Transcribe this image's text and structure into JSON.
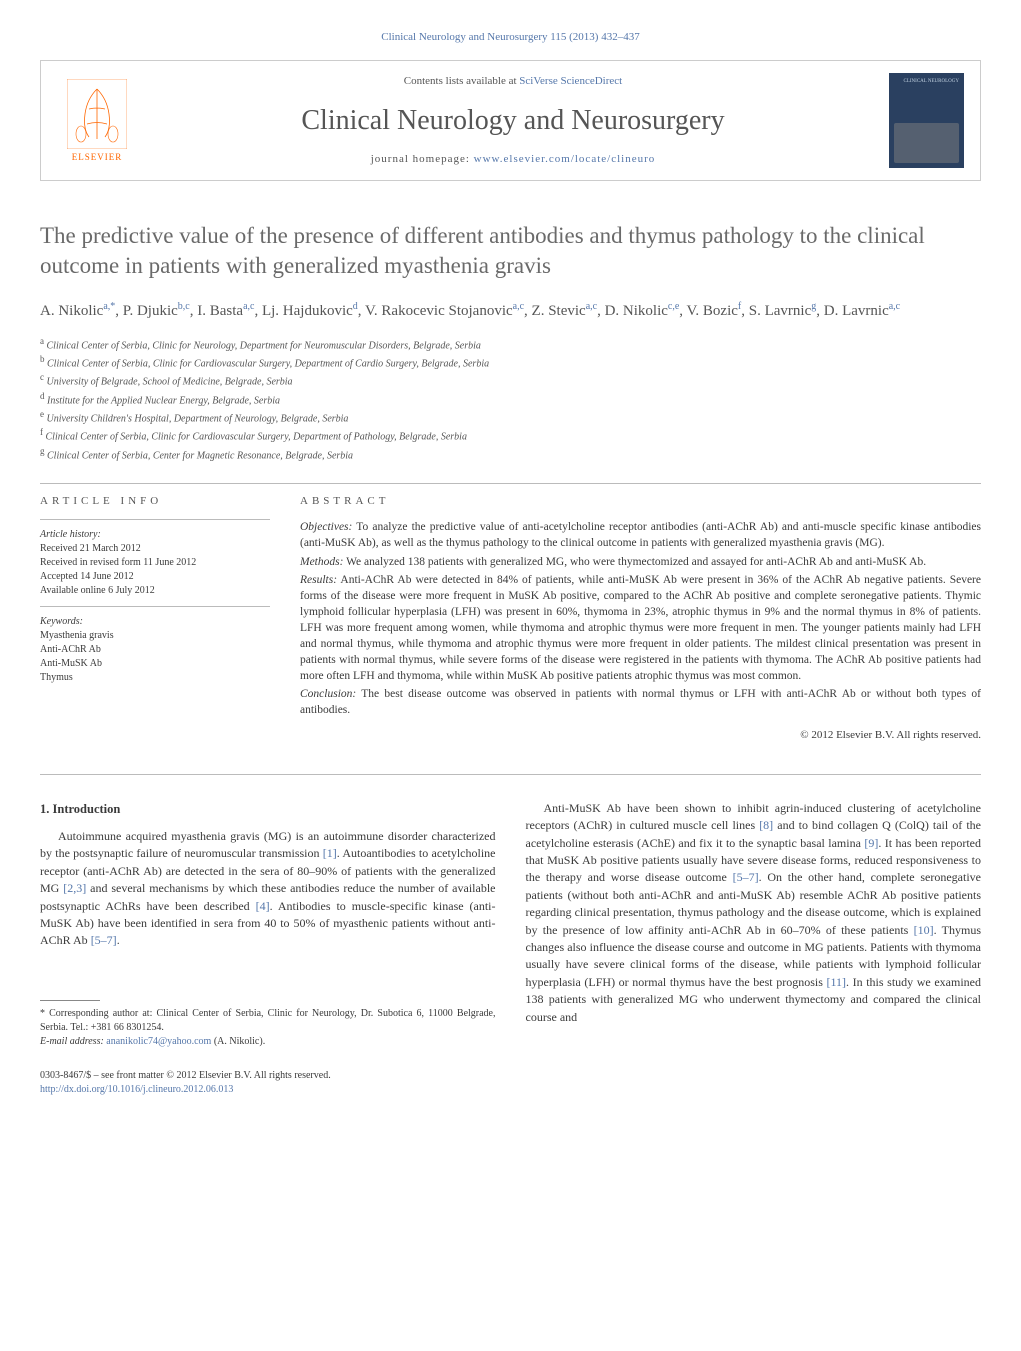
{
  "meta_header": "Clinical Neurology and Neurosurgery 115 (2013) 432–437",
  "publisher": {
    "contents_prefix": "Contents lists available at ",
    "contents_link": "SciVerse ScienceDirect",
    "journal_name": "Clinical Neurology and Neurosurgery",
    "homepage_prefix": "journal homepage: ",
    "homepage_link": "www.elsevier.com/locate/clineuro",
    "elsevier_name": "ELSEVIER",
    "cover_title": "CLINICAL NEUROLOGY"
  },
  "article": {
    "title": "The predictive value of the presence of different antibodies and thymus pathology to the clinical outcome in patients with generalized myasthenia gravis",
    "authors_html": "A. Nikolic<sup>a,*</sup>, P. Djukic<sup>b,c</sup>, I. Basta<sup>a,c</sup>, Lj. Hajdukovic<sup>d</sup>, V. Rakocevic Stojanovic<sup>a,c</sup>, Z. Stevic<sup>a,c</sup>, D. Nikolic<sup>c,e</sup>, V. Bozic<sup>f</sup>, S. Lavrnic<sup>g</sup>, D. Lavrnic<sup>a,c</sup>",
    "affiliations": [
      {
        "sup": "a",
        "text": "Clinical Center of Serbia, Clinic for Neurology, Department for Neuromuscular Disorders, Belgrade, Serbia"
      },
      {
        "sup": "b",
        "text": "Clinical Center of Serbia, Clinic for Cardiovascular Surgery, Department of Cardio Surgery, Belgrade, Serbia"
      },
      {
        "sup": "c",
        "text": "University of Belgrade, School of Medicine, Belgrade, Serbia"
      },
      {
        "sup": "d",
        "text": "Institute for the Applied Nuclear Energy, Belgrade, Serbia"
      },
      {
        "sup": "e",
        "text": "University Children's Hospital, Department of Neurology, Belgrade, Serbia"
      },
      {
        "sup": "f",
        "text": "Clinical Center of Serbia, Clinic for Cardiovascular Surgery, Department of Pathology, Belgrade, Serbia"
      },
      {
        "sup": "g",
        "text": "Clinical Center of Serbia, Center for Magnetic Resonance, Belgrade, Serbia"
      }
    ]
  },
  "info": {
    "heading": "article info",
    "history_label": "Article history:",
    "history": [
      "Received 21 March 2012",
      "Received in revised form 11 June 2012",
      "Accepted 14 June 2012",
      "Available online 6 July 2012"
    ],
    "keywords_label": "Keywords:",
    "keywords": [
      "Myasthenia gravis",
      "Anti-AChR Ab",
      "Anti-MuSK Ab",
      "Thymus"
    ]
  },
  "abstract": {
    "heading": "abstract",
    "sections": [
      {
        "label": "Objectives:",
        "text": " To analyze the predictive value of anti-acetylcholine receptor antibodies (anti-AChR Ab) and anti-muscle specific kinase antibodies (anti-MuSK Ab), as well as the thymus pathology to the clinical outcome in patients with generalized myasthenia gravis (MG)."
      },
      {
        "label": "Methods:",
        "text": " We analyzed 138 patients with generalized MG, who were thymectomized and assayed for anti-AChR Ab and anti-MuSK Ab."
      },
      {
        "label": "Results:",
        "text": " Anti-AChR Ab were detected in 84% of patients, while anti-MuSK Ab were present in 36% of the AChR Ab negative patients. Severe forms of the disease were more frequent in MuSK Ab positive, compared to the AChR Ab positive and complete seronegative patients. Thymic lymphoid follicular hyperplasia (LFH) was present in 60%, thymoma in 23%, atrophic thymus in 9% and the normal thymus in 8% of patients. LFH was more frequent among women, while thymoma and atrophic thymus were more frequent in men. The younger patients mainly had LFH and normal thymus, while thymoma and atrophic thymus were more frequent in older patients. The mildest clinical presentation was present in patients with normal thymus, while severe forms of the disease were registered in the patients with thymoma. The AChR Ab positive patients had more often LFH and thymoma, while within MuSK Ab positive patients atrophic thymus was most common."
      },
      {
        "label": "Conclusion:",
        "text": " The best disease outcome was observed in patients with normal thymus or LFH with anti-AChR Ab or without both types of antibodies."
      }
    ],
    "copyright": "© 2012 Elsevier B.V. All rights reserved."
  },
  "body": {
    "heading": "1. Introduction",
    "col1_p1_pre": "Autoimmune acquired myasthenia gravis (MG) is an autoimmune disorder characterized by the postsynaptic failure of neuromuscular transmission ",
    "ref1": "[1]",
    "col1_p1_mid1": ". Autoantibodies to acetylcholine receptor (anti-AChR Ab) are detected in the sera of 80–90% of patients with the generalized MG ",
    "ref23": "[2,3]",
    "col1_p1_mid2": " and several mechanisms by which these antibodies reduce the number of available postsynaptic AChRs have been described ",
    "ref4": "[4]",
    "col1_p1_mid3": ". Antibodies to muscle-specific kinase (anti-MuSK Ab) have been identified in sera from 40 to 50% of myasthenic patients without anti-AChR Ab ",
    "ref57a": "[5–7]",
    "col1_p1_end": ".",
    "col2_p1_pre": "Anti-MuSK Ab have been shown to inhibit agrin-induced clustering of acetylcholine receptors (AChR) in cultured muscle cell lines ",
    "ref8": "[8]",
    "col2_p1_mid1": " and to bind collagen Q (ColQ) tail of the acetylcholine esterasis (AChE) and fix it to the synaptic basal lamina ",
    "ref9": "[9]",
    "col2_p1_mid2": ". It has been reported that MuSK Ab positive patients usually have severe disease forms, reduced responsiveness to the therapy and worse disease outcome ",
    "ref57b": "[5–7]",
    "col2_p1_mid3": ". On the other hand, complete seronegative patients (without both anti-AChR and anti-MuSK Ab) resemble AChR Ab positive patients regarding clinical presentation, thymus pathology and the disease outcome, which is explained by the presence of low affinity anti-AChR Ab in 60–70% of these patients ",
    "ref10": "[10]",
    "col2_p1_mid4": ". Thymus changes also influence the disease course and outcome in MG patients. Patients with thymoma usually have severe clinical forms of the disease, while patients with lymphoid follicular hyperplasia (LFH) or normal thymus have the best prognosis ",
    "ref11": "[11]",
    "col2_p1_end": ". In this study we examined 138 patients with generalized MG who underwent thymectomy and compared the clinical course and"
  },
  "footnote": {
    "corr_text": "* Corresponding author at: Clinical Center of Serbia, Clinic for Neurology, Dr. Subotica 6, 11000 Belgrade, Serbia. Tel.: +381 66 8301254.",
    "email_label": "E-mail address: ",
    "email": "ananikolic74@yahoo.com",
    "email_suffix": " (A. Nikolic)."
  },
  "footer": {
    "issn": "0303-8467/$ – see front matter © 2012 Elsevier B.V. All rights reserved.",
    "doi": "http://dx.doi.org/10.1016/j.clineuro.2012.06.013"
  },
  "colors": {
    "link": "#5577aa",
    "text": "#3a3a3a",
    "heading_gray": "#6a6a6a",
    "orange": "#ff6600",
    "cover_bg": "#2a4060"
  }
}
